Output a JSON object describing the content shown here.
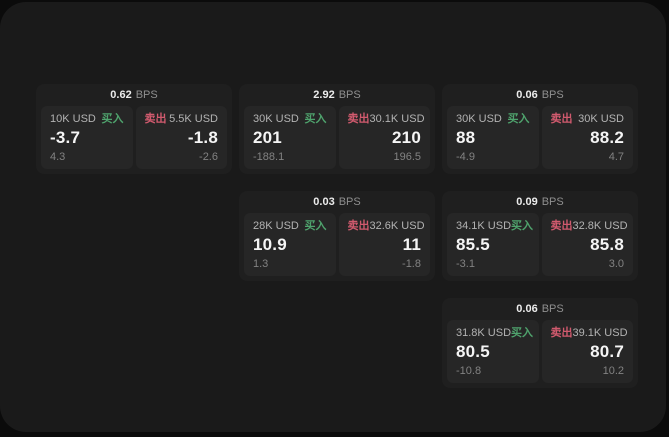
{
  "labels": {
    "bps": "BPS",
    "buy": "买入",
    "sell": "卖出"
  },
  "colors": {
    "buy": "#4fa36d",
    "sell": "#d15a6e",
    "page_bg": "#1a1a1a",
    "card_bg": "#1f1f1f",
    "panel_bg": "#262626"
  },
  "cards": [
    {
      "row": 1,
      "col": 1,
      "bps": "0.62",
      "buy": {
        "amount": "10K USD",
        "value": "-3.7",
        "delta": "4.3"
      },
      "sell": {
        "amount": "5.5K USD",
        "value": "-1.8",
        "delta": "-2.6"
      }
    },
    {
      "row": 1,
      "col": 2,
      "bps": "2.92",
      "buy": {
        "amount": "30K USD",
        "value": "201",
        "delta": "-188.1"
      },
      "sell": {
        "amount": "30.1K USD",
        "value": "210",
        "delta": "196.5"
      }
    },
    {
      "row": 1,
      "col": 3,
      "bps": "0.06",
      "buy": {
        "amount": "30K USD",
        "value": "88",
        "delta": "-4.9"
      },
      "sell": {
        "amount": "30K USD",
        "value": "88.2",
        "delta": "4.7"
      }
    },
    {
      "row": 2,
      "col": 2,
      "bps": "0.03",
      "buy": {
        "amount": "28K USD",
        "value": "10.9",
        "delta": "1.3"
      },
      "sell": {
        "amount": "32.6K USD",
        "value": "11",
        "delta": "-1.8"
      }
    },
    {
      "row": 2,
      "col": 3,
      "bps": "0.09",
      "buy": {
        "amount": "34.1K USD",
        "value": "85.5",
        "delta": "-3.1"
      },
      "sell": {
        "amount": "32.8K USD",
        "value": "85.8",
        "delta": "3.0"
      }
    },
    {
      "row": 3,
      "col": 3,
      "bps": "0.06",
      "buy": {
        "amount": "31.8K USD",
        "value": "80.5",
        "delta": "-10.8"
      },
      "sell": {
        "amount": "39.1K USD",
        "value": "80.7",
        "delta": "10.2"
      }
    }
  ]
}
